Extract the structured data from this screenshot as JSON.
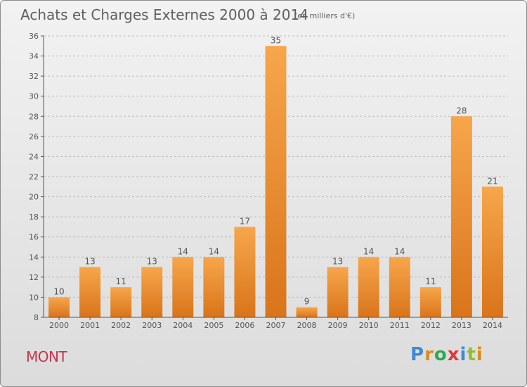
{
  "header": {
    "title": "Achats et Charges Externes 2000 à 2014",
    "unit": "(en milliers d'€)"
  },
  "footer": {
    "commune": "MONT",
    "logo_text": "Proxiti",
    "logo_colors": [
      "#3d8ad6",
      "#e08a1e",
      "#2fa84f",
      "#d93a3a",
      "#3d8ad6",
      "#8fbf2f",
      "#e08a1e"
    ]
  },
  "colors": {
    "bar_light": "#f7a64b",
    "bar_dark": "#d9741a",
    "grid": "#bdbdbd",
    "axis": "#555555"
  },
  "chart_data": {
    "type": "bar",
    "title": "Achats et Charges Externes 2000 à 2014",
    "xlabel": "",
    "ylabel": "",
    "categories": [
      "2000",
      "2001",
      "2002",
      "2003",
      "2004",
      "2005",
      "2006",
      "2007",
      "2008",
      "2009",
      "2010",
      "2011",
      "2012",
      "2013",
      "2014"
    ],
    "values": [
      10,
      13,
      11,
      13,
      14,
      14,
      17,
      35,
      9,
      13,
      14,
      14,
      11,
      28,
      21
    ],
    "ylim": [
      8,
      36
    ],
    "yticks": [
      8,
      10,
      12,
      14,
      16,
      18,
      20,
      22,
      24,
      26,
      28,
      30,
      32,
      34,
      36
    ],
    "grid": true,
    "data_labels": true
  }
}
